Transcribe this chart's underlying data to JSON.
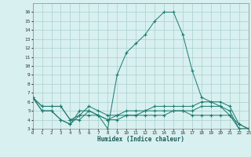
{
  "x": [
    0,
    1,
    2,
    3,
    4,
    5,
    6,
    7,
    8,
    9,
    10,
    11,
    12,
    13,
    14,
    15,
    16,
    17,
    18,
    19,
    20,
    21,
    22,
    23
  ],
  "line1": [
    6.5,
    5.0,
    5.0,
    4.0,
    3.5,
    5.0,
    5.0,
    4.5,
    3.0,
    9.0,
    11.5,
    12.5,
    13.5,
    15.0,
    16.0,
    16.0,
    13.5,
    9.5,
    6.5,
    6.0,
    5.5,
    4.5,
    3.5,
    3.0
  ],
  "line2": [
    6.5,
    5.0,
    5.0,
    4.0,
    3.5,
    4.5,
    5.5,
    5.0,
    4.5,
    4.5,
    5.0,
    5.0,
    5.0,
    5.5,
    5.5,
    5.5,
    5.5,
    5.5,
    6.0,
    6.0,
    6.0,
    5.5,
    3.5,
    3.0
  ],
  "line3": [
    6.5,
    5.5,
    5.5,
    5.5,
    4.0,
    4.0,
    5.0,
    4.5,
    4.0,
    4.5,
    4.5,
    4.5,
    5.0,
    5.0,
    5.0,
    5.0,
    5.0,
    5.0,
    5.5,
    5.5,
    5.5,
    5.0,
    3.0,
    3.0
  ],
  "line4": [
    6.5,
    5.5,
    5.5,
    5.5,
    4.0,
    4.5,
    4.5,
    4.5,
    4.0,
    4.0,
    4.5,
    4.5,
    4.5,
    4.5,
    4.5,
    5.0,
    5.0,
    4.5,
    4.5,
    4.5,
    4.5,
    4.5,
    3.0,
    3.0
  ],
  "line_color": "#1a7a6e",
  "bg_color": "#d8f0ef",
  "grid_color": "#aacfcf",
  "xlabel": "Humidex (Indice chaleur)",
  "ylim": [
    3,
    17
  ],
  "xlim": [
    0,
    23
  ],
  "yticks": [
    3,
    4,
    5,
    6,
    7,
    8,
    9,
    10,
    11,
    12,
    13,
    14,
    15,
    16
  ],
  "xticks": [
    0,
    1,
    2,
    3,
    4,
    5,
    6,
    7,
    8,
    9,
    10,
    11,
    12,
    13,
    14,
    15,
    16,
    17,
    18,
    19,
    20,
    21,
    22,
    23
  ]
}
